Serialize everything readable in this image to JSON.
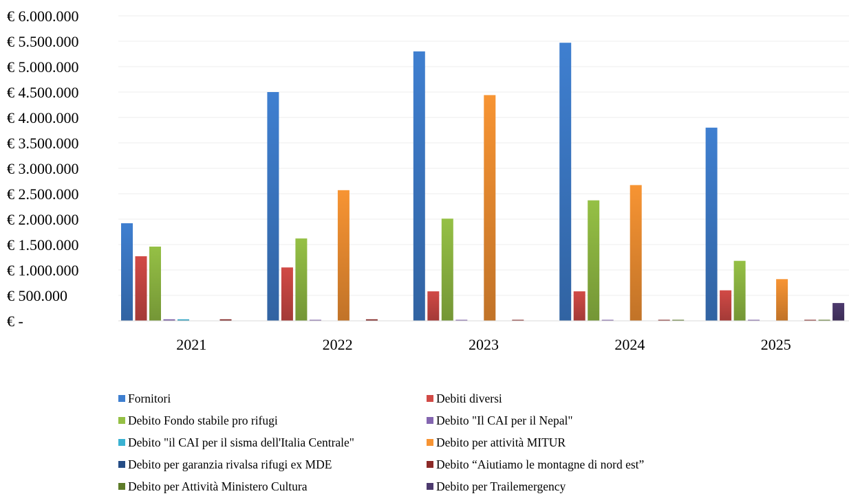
{
  "chart_data": {
    "type": "bar",
    "title": "",
    "xlabel": "",
    "ylabel": "",
    "ylim": [
      0,
      6000000
    ],
    "yticks": [
      {
        "value": 0,
        "label": "€ -"
      },
      {
        "value": 500000,
        "label": "€ 500.000"
      },
      {
        "value": 1000000,
        "label": "€ 1.000.000"
      },
      {
        "value": 1500000,
        "label": "€ 1.500.000"
      },
      {
        "value": 2000000,
        "label": "€ 2.000.000"
      },
      {
        "value": 2500000,
        "label": "€ 2.500.000"
      },
      {
        "value": 3000000,
        "label": "€ 3.000.000"
      },
      {
        "value": 3500000,
        "label": "€ 3.500.000"
      },
      {
        "value": 4000000,
        "label": "€ 4.000.000"
      },
      {
        "value": 4500000,
        "label": "€ 4.500.000"
      },
      {
        "value": 5000000,
        "label": "€ 5.000.000"
      },
      {
        "value": 5500000,
        "label": "€ 5.500.000"
      },
      {
        "value": 6000000,
        "label": "€ 6.000.000"
      }
    ],
    "grid": true,
    "legend_position": "bottom",
    "categories": [
      "2021",
      "2022",
      "2023",
      "2024",
      "2025"
    ],
    "series": [
      {
        "name": "Fornitori",
        "color": "#3f7fd0",
        "values": [
          1920000,
          4500000,
          5300000,
          5470000,
          3800000
        ]
      },
      {
        "name": "Debiti diversi",
        "color": "#d14a46",
        "values": [
          1270000,
          1050000,
          580000,
          580000,
          600000
        ]
      },
      {
        "name": "Debito Fondo stabile pro rifugi",
        "color": "#95c045",
        "values": [
          1460000,
          1620000,
          2010000,
          2370000,
          1180000
        ]
      },
      {
        "name": "Debito \"Il CAI per il Nepal\"",
        "color": "#8466b0",
        "values": [
          30000,
          10000,
          10000,
          10000,
          10000
        ]
      },
      {
        "name": "Debito \"il CAI per il sisma dell'Italia Centrale\"",
        "color": "#3ab2d2",
        "values": [
          30000,
          0,
          0,
          0,
          0
        ]
      },
      {
        "name": "Debito per attività MITUR",
        "color": "#f79433",
        "values": [
          0,
          2570000,
          4440000,
          2670000,
          820000
        ]
      },
      {
        "name": "Debito per garanzia rivalsa rifugi ex MDE",
        "color": "#254d86",
        "values": [
          0,
          0,
          0,
          0,
          0
        ]
      },
      {
        "name": "Debito “Aiutiamo le montagne di nord est”",
        "color": "#8c2a28",
        "values": [
          30000,
          30000,
          10000,
          10000,
          10000
        ]
      },
      {
        "name": "Debito per Attività Ministero Cultura",
        "color": "#5e7c2a",
        "values": [
          0,
          0,
          0,
          10000,
          10000
        ]
      },
      {
        "name": "Debito per Trailemergency",
        "color": "#4d3a6e",
        "values": [
          0,
          0,
          0,
          0,
          350000
        ]
      }
    ]
  }
}
